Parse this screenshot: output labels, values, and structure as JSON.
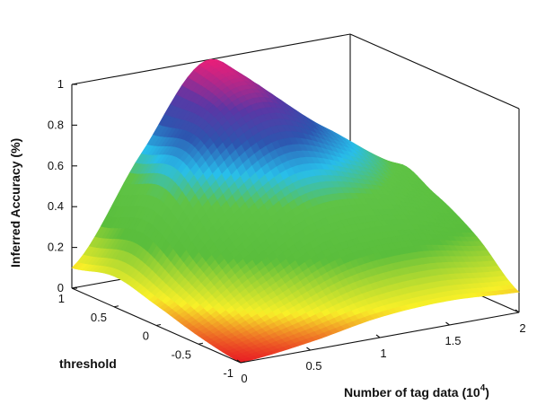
{
  "chart_data": {
    "type": "surface",
    "title": "",
    "xlabel": "Number of tag data (10^4)",
    "ylabel": "threshold",
    "zlabel": "Inferred Accuracy (%)",
    "xlim": [
      0,
      2
    ],
    "ylim": [
      -1,
      1
    ],
    "zlim": [
      0,
      1
    ],
    "x_ticks": [
      "0",
      "0.5",
      "1",
      "1.5",
      "2"
    ],
    "y_ticks": [
      "-1",
      "-0.5",
      "0",
      "0.5",
      "1"
    ],
    "z_ticks": [
      "0",
      "0.2",
      "0.4",
      "0.6",
      "0.8",
      "1"
    ],
    "grid": false,
    "colormap": "hsv",
    "x": [
      0,
      0.5,
      1,
      1.5,
      2
    ],
    "y": [
      -1,
      -0.5,
      0,
      0.5,
      1
    ],
    "z": [
      [
        0.0,
        0.04,
        0.1,
        0.12,
        0.1
      ],
      [
        0.04,
        0.18,
        0.33,
        0.35,
        0.28
      ],
      [
        0.1,
        0.4,
        0.62,
        0.55,
        0.4
      ],
      [
        0.15,
        0.65,
        0.9,
        0.7,
        0.45
      ],
      [
        0.1,
        0.6,
        1.0,
        0.55,
        0.02
      ]
    ]
  }
}
